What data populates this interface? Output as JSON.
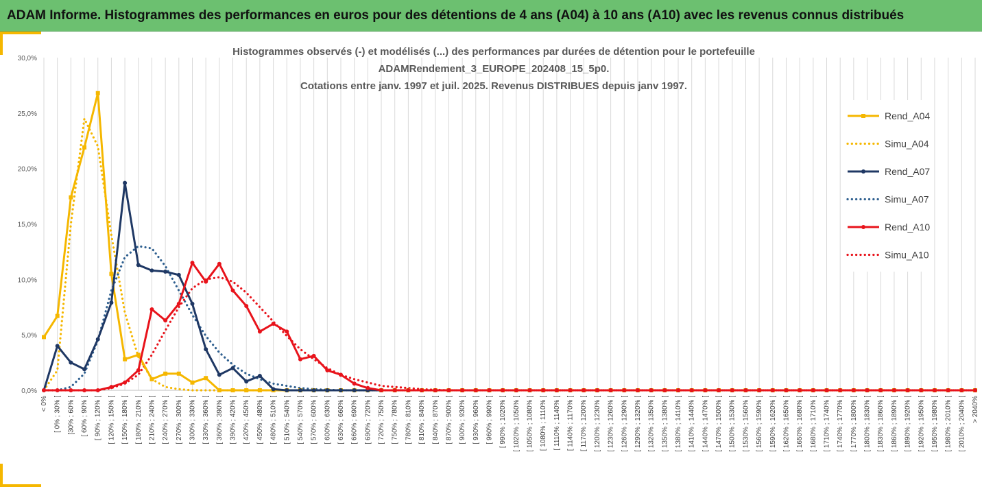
{
  "header": {
    "title": "ADAM Informe. Histogrammes des performances en euros pour des détentions de 4 ans (A04) à 10 ans (A10) avec les revenus connus distribués"
  },
  "colors": {
    "banner": "#6cc070",
    "A04": "#f5b700",
    "A07": "#1f3864",
    "A07_simu": "#2e5f8f",
    "A10": "#e8131b",
    "grid": "#d9d9d9"
  },
  "chart_data": {
    "type": "line",
    "title_lines": [
      "Histogrammes observés (-) et modélisés (...) des performances par durées de détention pour le portefeuille",
      "ADAMRendement_3_EUROPE_202408_15_5p0.",
      "Cotations entre janv. 1997 et juil. 2025. Revenus DISTRIBUES depuis janv 1997."
    ],
    "ylim": [
      0,
      30
    ],
    "yticks": [
      "0,0%",
      "5,0%",
      "10,0%",
      "15,0%",
      "20,0%",
      "25,0%",
      "30,0%"
    ],
    "grid": "vertical",
    "legend_position": "right",
    "categories": [
      "< 0%",
      "[ 0% ; 30% [",
      "[30% ; 60% [",
      "[ 60% ; 90% [",
      "[ 90% ; 120% [",
      "[ 120% ; 150% [",
      "[ 150% ; 180% [",
      "[ 180% ; 210% [",
      "[ 210% ; 240% [",
      "[ 240% ; 270% [",
      "[ 270% ; 300% [",
      "[ 300% ; 330% [",
      "[ 330% ; 360% [",
      "[ 360% ; 390% [",
      "[ 390% ; 420% [",
      "[ 420% ; 450% [",
      "[ 450% ; 480% [",
      "[ 480% ; 510% [",
      "[ 510% ; 540% [",
      "[ 540% ; 570% [",
      "[ 570% ; 600% [",
      "[ 600% ; 630% [",
      "[ 630% ; 660% [",
      "[ 660% ; 690% [",
      "[ 690% ; 720% [",
      "[ 720% ; 750% [",
      "[ 750% ; 780% [",
      "[ 780% ; 810% [",
      "[ 810% ; 840% [",
      "[ 840% ; 870% [",
      "[ 870% ; 900% [",
      "[ 900% ; 930% [",
      "[ 930% ; 960% [",
      "[ 960% ; 990% [",
      "[ 990% ; 1020% [",
      "[ 1020% ; 1050% [",
      "[ 1050% ; 1080% [",
      "[ 1080% ; 1110% [",
      "[ 1110% ; 1140% [",
      "[ 1140% ; 1170% [",
      "[ 1170% ; 1200% [",
      "[ 1200% ; 1230% [",
      "[ 1230% ; 1260% [",
      "[ 1260% ; 1290% [",
      "[ 1290% ; 1320% [",
      "[ 1320% ; 1350% [",
      "[ 1350% ; 1380% [",
      "[ 1380% ; 1410% [",
      "[ 1410% ; 1440% [",
      "[ 1440% ; 1470% [",
      "[ 1470% ; 1500% [",
      "[ 1500% ; 1530% [",
      "[ 1530% ; 1560% [",
      "[ 1560% ; 1590% [",
      "[ 1590% ; 1620% [",
      "[ 1620% ; 1650% [",
      "[ 1650% ; 1680% [",
      "[ 1680% ; 1710% [",
      "[ 1710% ; 1740% [",
      "[ 1740% ; 1770% [",
      "[ 1770% ; 1800% [",
      "[ 1800% ; 1830% [",
      "[ 1830% ; 1860% [",
      "[ 1860% ; 1890% [",
      "[ 1890% ; 1920% [",
      "[ 1920% ; 1950% [",
      "[ 1950% ; 1980% [",
      "[ 1980% ; 2010% [",
      "[ 2010% ; 2040% [",
      "> 2040%"
    ],
    "series": [
      {
        "name": "Rend_A04",
        "style": "solid",
        "color": "#f5b700",
        "values": [
          4.8,
          6.7,
          17.4,
          21.9,
          26.8,
          10.5,
          2.8,
          3.2,
          1.0,
          1.5,
          1.5,
          0.7,
          1.1,
          0,
          0,
          0,
          0,
          0,
          0,
          0,
          0,
          0,
          0,
          0,
          0,
          0,
          0,
          0,
          0,
          0,
          0,
          0,
          0,
          0,
          0,
          0,
          0,
          0,
          0,
          0,
          0,
          0,
          0,
          0,
          0,
          0,
          0,
          0,
          0,
          0,
          0,
          0,
          0,
          0,
          0,
          0,
          0,
          0,
          0,
          0,
          0,
          0,
          0,
          0,
          0,
          0,
          0,
          0,
          0,
          0
        ]
      },
      {
        "name": "Simu_A04",
        "style": "dotted",
        "color": "#f5b700",
        "values": [
          0,
          1.8,
          15.0,
          24.5,
          22.0,
          14.0,
          7.0,
          3.0,
          1.0,
          0.3,
          0.1,
          0,
          0,
          0,
          0,
          0,
          0,
          0,
          0,
          0,
          0,
          0,
          0,
          0,
          0,
          0,
          0,
          0,
          0,
          0,
          0,
          0,
          0,
          0,
          0,
          0,
          0,
          0,
          0,
          0,
          0,
          0,
          0,
          0,
          0,
          0,
          0,
          0,
          0,
          0,
          0,
          0,
          0,
          0,
          0,
          0,
          0,
          0,
          0,
          0,
          0,
          0,
          0,
          0,
          0,
          0,
          0,
          0,
          0,
          0
        ]
      },
      {
        "name": "Rend_A07",
        "style": "solid",
        "color": "#1f3864",
        "values": [
          0,
          4.0,
          2.5,
          1.9,
          4.6,
          7.9,
          18.7,
          11.3,
          10.8,
          10.7,
          10.4,
          7.8,
          3.7,
          1.4,
          2.0,
          0.8,
          1.3,
          0.1,
          0,
          0,
          0,
          0,
          0,
          0,
          0,
          0,
          0,
          0,
          0,
          0,
          0,
          0,
          0,
          0,
          0,
          0,
          0,
          0,
          0,
          0,
          0,
          0,
          0,
          0,
          0,
          0,
          0,
          0,
          0,
          0,
          0,
          0,
          0,
          0,
          0,
          0,
          0,
          0,
          0,
          0,
          0,
          0,
          0,
          0,
          0,
          0,
          0,
          0,
          0,
          0
        ]
      },
      {
        "name": "Simu_A07",
        "style": "dotted",
        "color": "#2e5f8f",
        "values": [
          0,
          0,
          0.3,
          1.5,
          4.5,
          9.0,
          12.0,
          13.0,
          12.8,
          11.2,
          9.0,
          6.8,
          4.9,
          3.4,
          2.3,
          1.5,
          1.0,
          0.6,
          0.4,
          0.2,
          0.1,
          0.05,
          0,
          0,
          0,
          0,
          0,
          0,
          0,
          0,
          0,
          0,
          0,
          0,
          0,
          0,
          0,
          0,
          0,
          0,
          0,
          0,
          0,
          0,
          0,
          0,
          0,
          0,
          0,
          0,
          0,
          0,
          0,
          0,
          0,
          0,
          0,
          0,
          0,
          0,
          0,
          0,
          0,
          0,
          0,
          0,
          0,
          0,
          0,
          0
        ]
      },
      {
        "name": "Rend_A10",
        "style": "solid",
        "color": "#e8131b",
        "values": [
          0,
          0,
          0,
          0,
          0,
          0.3,
          0.7,
          1.8,
          7.3,
          6.3,
          7.8,
          11.5,
          9.8,
          11.4,
          9.0,
          7.6,
          5.3,
          6.0,
          5.3,
          2.8,
          3.1,
          1.8,
          1.4,
          0.6,
          0.2,
          0,
          0,
          0,
          0,
          0,
          0,
          0,
          0,
          0,
          0,
          0,
          0,
          0,
          0,
          0,
          0,
          0,
          0,
          0,
          0,
          0,
          0,
          0,
          0,
          0,
          0,
          0,
          0,
          0,
          0,
          0,
          0,
          0,
          0,
          0,
          0,
          0,
          0,
          0,
          0,
          0,
          0,
          0,
          0,
          0
        ]
      },
      {
        "name": "Simu_A10",
        "style": "dotted",
        "color": "#e8131b",
        "values": [
          0,
          0,
          0,
          0,
          0,
          0.2,
          0.6,
          1.4,
          3.2,
          5.4,
          7.5,
          9.2,
          10.0,
          10.2,
          9.8,
          8.8,
          7.5,
          6.2,
          4.9,
          3.7,
          2.8,
          2.0,
          1.4,
          1.0,
          0.7,
          0.4,
          0.3,
          0.2,
          0.1,
          0.05,
          0,
          0,
          0,
          0,
          0,
          0,
          0,
          0,
          0,
          0,
          0,
          0,
          0,
          0,
          0,
          0,
          0,
          0,
          0,
          0,
          0,
          0,
          0,
          0,
          0,
          0,
          0,
          0,
          0,
          0,
          0,
          0,
          0,
          0,
          0,
          0,
          0,
          0,
          0,
          0
        ]
      }
    ]
  }
}
